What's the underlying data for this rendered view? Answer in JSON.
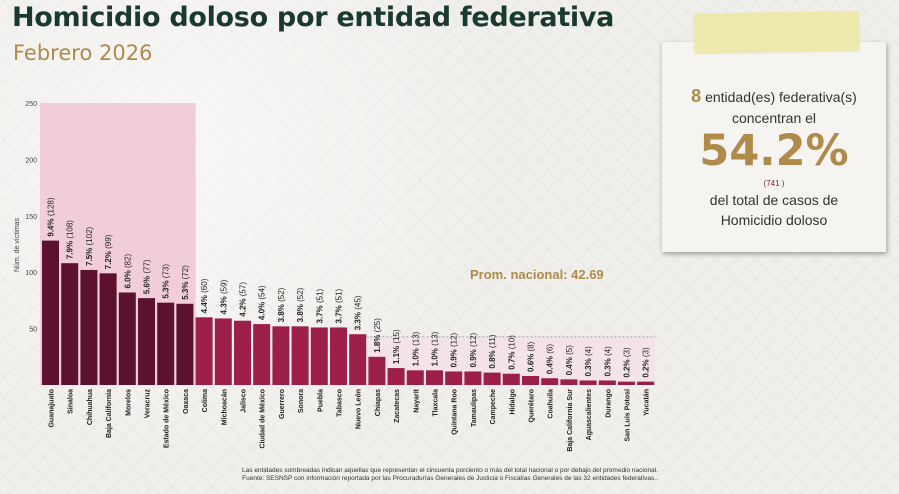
{
  "title": "Homicidio doloso por entidad federativa",
  "subtitle": "Febrero 2026",
  "chart_data": {
    "type": "bar",
    "ylabel": "Núm. de víctimas",
    "ylim": [
      0,
      250
    ],
    "yticks": [
      "50",
      "100",
      "150",
      "200",
      "250"
    ],
    "average_label": "Prom. nacional: 42.69",
    "average": 42.69,
    "highlighted_count": 8,
    "categories": [
      "Guanajuato",
      "Sinaloa",
      "Chihuahua",
      "Baja California",
      "Morelos",
      "Veracruz",
      "Estado de México",
      "Oaxaca",
      "Colima",
      "Michoacán",
      "Jalisco",
      "Ciudad de México",
      "Guerrero",
      "Sonora",
      "Puebla",
      "Tabasco",
      "Nuevo León",
      "Chiapas",
      "Zacatecas",
      "Nayarit",
      "Tlaxcala",
      "Quintana Roo",
      "Tamaulipas",
      "Campeche",
      "Hidalgo",
      "Querétaro",
      "Coahuila",
      "Baja California Sur",
      "Aguascalientes",
      "Durango",
      "San Luis Potosí",
      "Yucatán"
    ],
    "values": [
      128,
      108,
      102,
      99,
      82,
      77,
      73,
      72,
      60,
      59,
      57,
      54,
      52,
      52,
      51,
      51,
      45,
      25,
      15,
      13,
      13,
      12,
      12,
      11,
      10,
      8,
      6,
      5,
      4,
      4,
      3,
      3
    ],
    "pct_labels": [
      "9.4%",
      "7.9%",
      "7.5%",
      "7.2%",
      "6.0%",
      "5.6%",
      "5.3%",
      "5.3%",
      "4.4%",
      "4.3%",
      "4.2%",
      "4.0%",
      "3.8%",
      "3.8%",
      "3.7%",
      "3.7%",
      "3.3%",
      "1.8%",
      "1.1%",
      "1.0%",
      "1.0%",
      "0.9%",
      "0.9%",
      "0.8%",
      "0.7%",
      "0.6%",
      "0.4%",
      "0.4%",
      "0.3%",
      "0.3%",
      "0.2%",
      "0.2%"
    ],
    "count_labels": [
      "(128)",
      "(108)",
      "(102)",
      "(99)",
      "(82)",
      "(77)",
      "(73)",
      "(72)",
      "(60)",
      "(59)",
      "(57)",
      "(54)",
      "(52)",
      "(52)",
      "(51)",
      "(51)",
      "(45)",
      "(25)",
      "(15)",
      "(13)",
      "(13)",
      "(12)",
      "(12)",
      "(11)",
      "(10)",
      "(8)",
      "(6)",
      "(5)",
      "(4)",
      "(4)",
      "(3)",
      "(3)"
    ],
    "colors": {
      "top_bar": "#5c1130",
      "rest_bar": "#9b1f48",
      "top_shade": "#f0cdd9",
      "below_avg_shade": "#f4e4ea",
      "avg_label": "#b08a4a"
    }
  },
  "card": {
    "count": "8",
    "line1": "entidad(es) federativa(s)",
    "line2": "concentran el",
    "pct": "54.2%",
    "cases": "(741 )",
    "line3": "del total de casos de",
    "line4": "Homicidio doloso"
  },
  "notes": {
    "line1": "Las entidades sombreadas indican aquellas que representan el cincuenta porciento o más del total nacional o por debajo del promedio nacional.",
    "line2": "Fuente: SESNSP con información reportada por las Procuradurías Generales de Justicia o Fiscalías Generales de las 32 entidades federativas.."
  }
}
